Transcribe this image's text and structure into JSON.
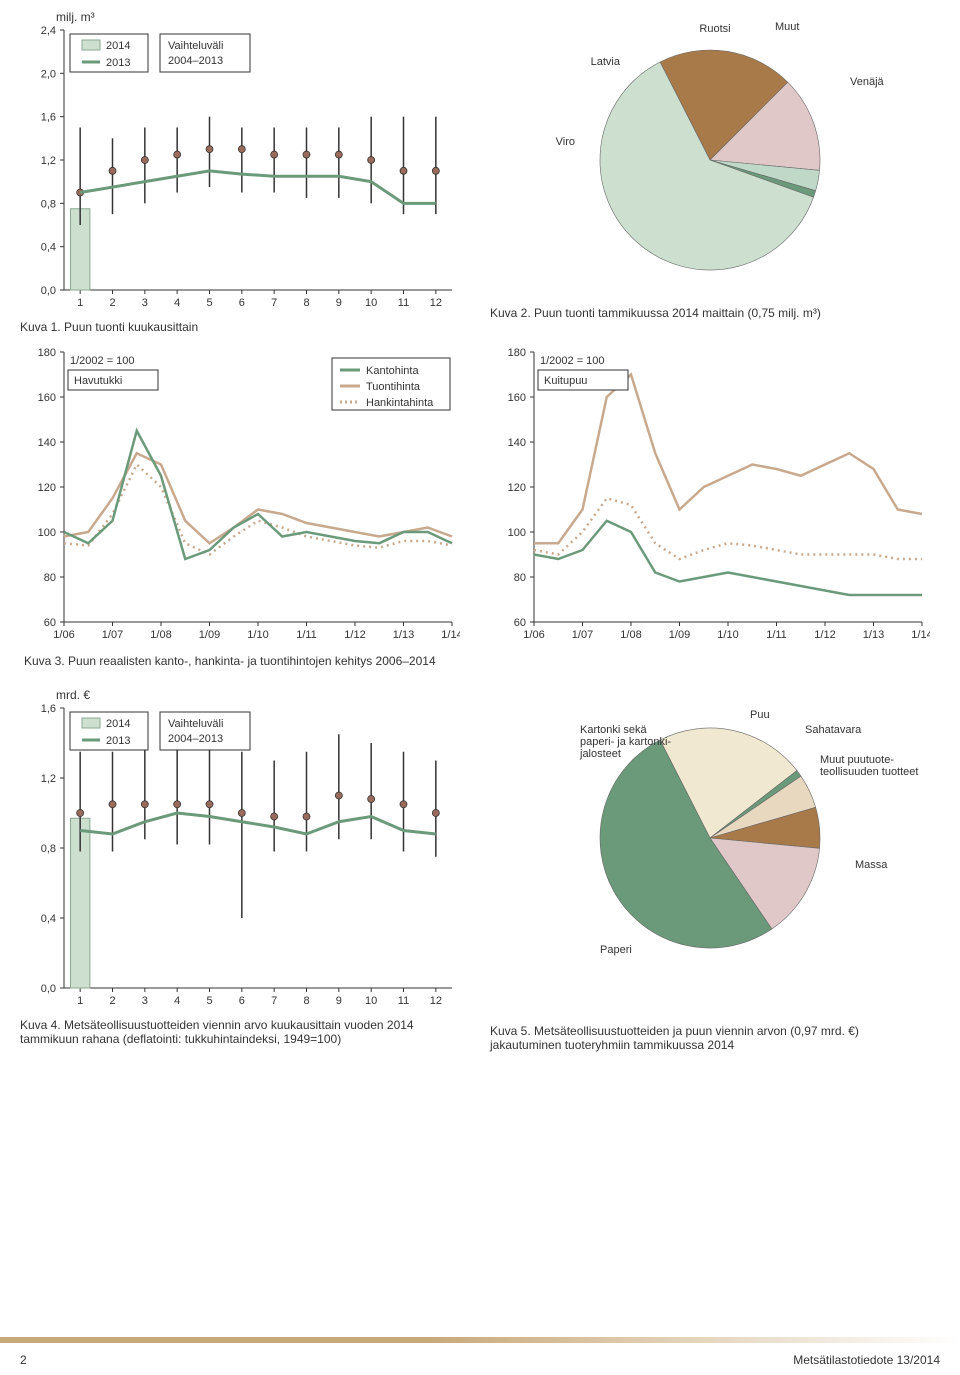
{
  "colors": {
    "green": "#6a9a7a",
    "beige": "#c9a98d",
    "brown": "#a87a4a",
    "darkbrown": "#7a5230",
    "pink": "#e0c8c8",
    "paleGreen": "#cde0d0",
    "paleBeige": "#f0e8d0",
    "paleTan": "#e8d8c0",
    "pinkGreen": "#d0c8b0",
    "barFill": "#cde0d0",
    "markerFill": "#9a6a5a",
    "axis": "#333333"
  },
  "fig1": {
    "ylabel": "milj. m³",
    "ylim": [
      0.0,
      2.4
    ],
    "ystep": 0.4,
    "xcats": [
      "1",
      "2",
      "3",
      "4",
      "5",
      "6",
      "7",
      "8",
      "9",
      "10",
      "11",
      "12"
    ],
    "legend_year1": "2014",
    "legend_year2": "2013",
    "legend_range": "Vaihteluväli",
    "legend_range2": "2004–2013",
    "bar2014": 0.75,
    "line2013": [
      0.9,
      0.95,
      1.0,
      1.05,
      1.1,
      1.07,
      1.05,
      1.05,
      1.05,
      1.0,
      0.8,
      0.8
    ],
    "range_low": [
      0.6,
      0.7,
      0.8,
      0.9,
      0.95,
      0.9,
      0.9,
      0.85,
      0.85,
      0.8,
      0.7,
      0.7
    ],
    "range_high": [
      1.5,
      1.4,
      1.5,
      1.5,
      1.6,
      1.5,
      1.5,
      1.5,
      1.5,
      1.6,
      1.6,
      1.6
    ],
    "markers": [
      0.9,
      1.1,
      1.2,
      1.25,
      1.3,
      1.3,
      1.25,
      1.25,
      1.25,
      1.2,
      1.1,
      1.1
    ],
    "caption": "Kuva 1. Puun tuonti kuukausittain"
  },
  "fig2": {
    "caption": "Kuva 2. Puun tuonti tammikuussa 2014 maittain (0,75 milj. m³)",
    "slices": [
      {
        "label": "Viro",
        "value": 20,
        "color": "#a87a4a"
      },
      {
        "label": "Latvia",
        "value": 14,
        "color": "#e0c8c8"
      },
      {
        "label": "Ruotsi",
        "value": 3,
        "color": "#c0d8c8"
      },
      {
        "label": "Muut",
        "value": 1,
        "color": "#6a9a7a"
      },
      {
        "label": "Venäjä",
        "value": 62,
        "color": "#cde0d0"
      }
    ]
  },
  "fig3": {
    "index_label": "1/2002 = 100",
    "left_title": "Havutukki",
    "right_title": "Kuitupuu",
    "legend_kanto": "Kantohinta",
    "legend_tuonti": "Tuontihinta",
    "legend_hankinta": "Hankintahinta",
    "ylim": [
      60,
      180
    ],
    "ystep": 20,
    "xcats": [
      "1/06",
      "1/07",
      "1/08",
      "1/09",
      "1/10",
      "1/11",
      "1/12",
      "1/13",
      "1/14"
    ],
    "left_kanto": [
      100,
      95,
      105,
      145,
      125,
      88,
      92,
      102,
      108,
      98,
      100,
      98,
      96,
      95,
      100,
      100,
      95
    ],
    "left_tuonti": [
      98,
      100,
      115,
      135,
      130,
      105,
      95,
      102,
      110,
      108,
      104,
      102,
      100,
      98,
      100,
      102,
      98
    ],
    "left_hank": [
      95,
      94,
      108,
      130,
      120,
      95,
      90,
      98,
      105,
      102,
      98,
      96,
      94,
      93,
      96,
      96,
      94
    ],
    "right_kanto": [
      90,
      88,
      92,
      105,
      100,
      82,
      78,
      80,
      82,
      80,
      78,
      76,
      74,
      72,
      72,
      72,
      72
    ],
    "right_tuonti": [
      95,
      95,
      110,
      160,
      170,
      135,
      110,
      120,
      125,
      130,
      128,
      125,
      130,
      135,
      128,
      110,
      108
    ],
    "right_hank": [
      92,
      90,
      100,
      115,
      112,
      95,
      88,
      92,
      95,
      94,
      92,
      90,
      90,
      90,
      90,
      88,
      88
    ],
    "caption": "Kuva 3. Puun reaalisten kanto-, hankinta- ja tuontihintojen kehitys 2006–2014"
  },
  "fig4": {
    "ylabel": "mrd. €",
    "ylim": [
      0.0,
      1.6
    ],
    "ystep": 0.4,
    "xcats": [
      "1",
      "2",
      "3",
      "4",
      "5",
      "6",
      "7",
      "8",
      "9",
      "10",
      "11",
      "12"
    ],
    "legend_year1": "2014",
    "legend_year2": "2013",
    "legend_range": "Vaihteluväli",
    "legend_range2": "2004–2013",
    "bar2014": 0.97,
    "line2013": [
      0.9,
      0.88,
      0.95,
      1.0,
      0.98,
      0.95,
      0.92,
      0.88,
      0.95,
      0.98,
      0.9,
      0.88
    ],
    "range_low": [
      0.78,
      0.78,
      0.85,
      0.82,
      0.82,
      0.4,
      0.78,
      0.78,
      0.85,
      0.85,
      0.78,
      0.75
    ],
    "range_high": [
      1.35,
      1.35,
      1.4,
      1.45,
      1.4,
      1.35,
      1.3,
      1.35,
      1.45,
      1.4,
      1.35,
      1.3
    ],
    "markers": [
      1.0,
      1.05,
      1.05,
      1.05,
      1.05,
      1.0,
      0.98,
      0.98,
      1.1,
      1.08,
      1.05,
      1.0
    ],
    "caption": "Kuva 4. Metsäteollisuustuotteiden viennin arvo kuukausittain vuoden 2014 tammikuun rahana (deflatointi: tukkuhintaindeksi, 1949=100)"
  },
  "fig5": {
    "caption": "Kuva 5. Metsäteollisuustuotteiden ja puun viennin arvon (0,97 mrd. €) jakautuminen tuoteryhmiin tammikuussa 2014",
    "slices": [
      {
        "label": "Kartonki sekä paperi- ja kartonki-jalosteet",
        "value": 22,
        "color": "#f0e8d0"
      },
      {
        "label": "Puu",
        "value": 1,
        "color": "#6a9a7a"
      },
      {
        "label": "Sahatavara",
        "value": 5,
        "color": "#e8d8c0"
      },
      {
        "label": "Muut puutuote-teollisuuden tuotteet",
        "value": 6,
        "color": "#a87a4a"
      },
      {
        "label": "Massa",
        "value": 14,
        "color": "#e0c8c8"
      },
      {
        "label": "Paperi",
        "value": 52,
        "color": "#6a9a7a"
      }
    ],
    "label_paperi": "Paperi",
    "label_massa": "Massa",
    "label_puu": "Puu",
    "label_saha": "Sahatavara",
    "label_muut": "Muut puutuote-\nteollisuuden tuotteet",
    "label_kartonki": "Kartonki sekä\npaperi- ja kartonki-\njalosteet"
  },
  "footer_page": "2",
  "footer_pub": "Metsätilastotiedote 13/2014"
}
